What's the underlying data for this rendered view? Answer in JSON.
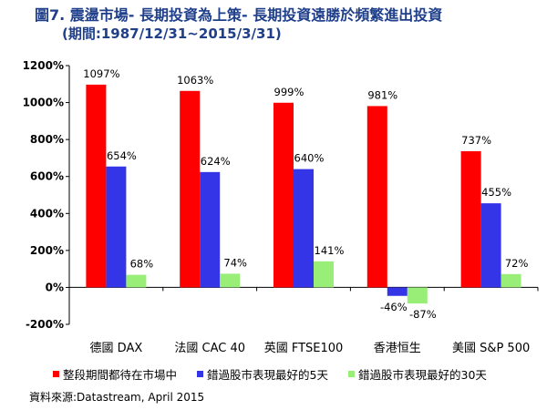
{
  "title": {
    "line1": "圖7. 震盪市場- 長期投資為上策- 長期投資遠勝於頻繁進出投資",
    "line2": "(期間:1987/12/31~2015/3/31)"
  },
  "chart_data": {
    "type": "bar",
    "categories": [
      "德國 DAX",
      "法國 CAC 40",
      "英國 FTSE100",
      "香港恒生",
      "美國 S&P 500"
    ],
    "series": [
      {
        "name": "整段期間都待在市場中",
        "color": "#ff0000",
        "values": [
          1097,
          1063,
          999,
          981,
          737
        ]
      },
      {
        "name": "錯過股市表現最好的5天",
        "color": "#3535e8",
        "values": [
          654,
          624,
          640,
          -46,
          455
        ]
      },
      {
        "name": "錯過股市表現最好的30天",
        "color": "#99ee77",
        "values": [
          68,
          74,
          141,
          -87,
          72
        ]
      }
    ],
    "ylim": [
      -200,
      1200
    ],
    "yticks": [
      -200,
      0,
      200,
      400,
      600,
      800,
      1000,
      1200
    ],
    "ytick_labels": [
      "-200%",
      "0%",
      "200%",
      "400%",
      "600%",
      "800%",
      "1000%",
      "1200%"
    ],
    "data_labels": [
      [
        "1097%",
        "1063%",
        "999%",
        "981%",
        "737%"
      ],
      [
        "654%",
        "624%",
        "640%",
        "-46%",
        "455%"
      ],
      [
        "68%",
        "74%",
        "141%",
        "-87%",
        "72%"
      ]
    ],
    "legend_position": "bottom",
    "grid": false
  },
  "source": "資料來源:Datastream, April 2015"
}
